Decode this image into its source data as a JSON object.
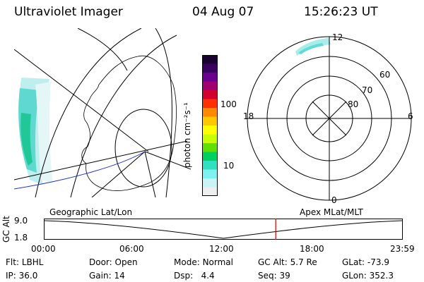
{
  "header": {
    "instrument": "Ultraviolet Imager",
    "date": "04 Aug 07",
    "time": "15:26:23 UT"
  },
  "colorbar": {
    "unit": "photon cm⁻²s⁻¹",
    "ticks": [
      "100",
      "10"
    ],
    "colors": [
      "#1a0030",
      "#3a0060",
      "#6a0090",
      "#a00070",
      "#d00030",
      "#ff3000",
      "#ff8a00",
      "#ffc800",
      "#ffff00",
      "#c8ff00",
      "#60e000",
      "#00d060",
      "#30e0c0",
      "#7ff0f0",
      "#c8f4f4",
      "#eeeeee"
    ]
  },
  "polar": {
    "mlt_labels": {
      "top": "12",
      "left": "18",
      "right": "6",
      "bottom": "0"
    },
    "lat_labels": [
      "60",
      "70",
      "80"
    ]
  },
  "timeline": {
    "axis_label": "GC Alt",
    "left_title": "Geographic Lat/Lon",
    "right_title": "Apex MLat/MLT",
    "y_ticks": [
      "9.0",
      "1.8"
    ],
    "x_ticks": [
      "00:00",
      "06:00",
      "12:00",
      "18:00",
      "23:59"
    ],
    "current_time_fraction": 0.646,
    "marker_color": "#cc0000"
  },
  "info": {
    "row1": [
      {
        "label": "Flt:",
        "value": "LBHL"
      },
      {
        "label": "Door:",
        "value": "Open"
      },
      {
        "label": "Mode:",
        "value": "Normal"
      },
      {
        "label": "GC Alt:",
        "value": "5.7 Re"
      },
      {
        "label": "GLat:",
        "value": "-73.9"
      }
    ],
    "row2": [
      {
        "label": "IP:",
        "value": "36.0"
      },
      {
        "label": "Gain:",
        "value": "14"
      },
      {
        "label": "Dsp:",
        "value": "4.4"
      },
      {
        "label": "Seq:",
        "value": "39"
      },
      {
        "label": "GLon:",
        "value": "352.3"
      }
    ]
  }
}
